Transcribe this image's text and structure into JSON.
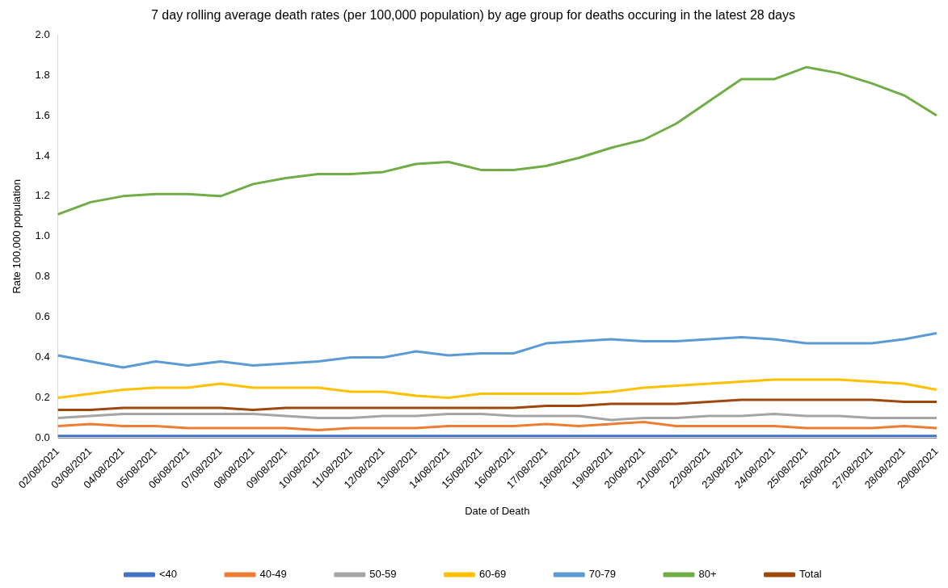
{
  "chart_data": {
    "type": "line",
    "title": "7 day rolling average death rates (per 100,000 population) by age group for deaths occuring in the latest 28 days",
    "xlabel": "Date of Death",
    "ylabel": "Rate 100,000 population",
    "categories": [
      "02/08/2021",
      "03/08/2021",
      "04/08/2021",
      "05/08/2021",
      "06/08/2021",
      "07/08/2021",
      "08/08/2021",
      "09/08/2021",
      "10/08/2021",
      "11/08/2021",
      "12/08/2021",
      "13/08/2021",
      "14/08/2021",
      "15/08/2021",
      "16/08/2021",
      "17/08/2021",
      "18/08/2021",
      "19/08/2021",
      "20/08/2021",
      "21/08/2021",
      "22/08/2021",
      "23/08/2021",
      "24/08/2021",
      "25/08/2021",
      "26/08/2021",
      "27/08/2021",
      "28/08/2021",
      "29/08/2021"
    ],
    "series": [
      {
        "name": "<40",
        "color": "#4472c4",
        "values": [
          0.01,
          0.01,
          0.01,
          0.01,
          0.01,
          0.01,
          0.01,
          0.01,
          0.01,
          0.01,
          0.01,
          0.01,
          0.01,
          0.01,
          0.01,
          0.01,
          0.01,
          0.01,
          0.01,
          0.01,
          0.01,
          0.01,
          0.01,
          0.01,
          0.01,
          0.01,
          0.01,
          0.01
        ]
      },
      {
        "name": "40-49",
        "color": "#ed7d31",
        "values": [
          0.06,
          0.07,
          0.06,
          0.06,
          0.05,
          0.05,
          0.05,
          0.05,
          0.04,
          0.05,
          0.05,
          0.05,
          0.06,
          0.06,
          0.06,
          0.07,
          0.06,
          0.07,
          0.08,
          0.06,
          0.06,
          0.06,
          0.06,
          0.05,
          0.05,
          0.05,
          0.06,
          0.05
        ]
      },
      {
        "name": "50-59",
        "color": "#a5a5a5",
        "values": [
          0.1,
          0.11,
          0.12,
          0.12,
          0.12,
          0.12,
          0.12,
          0.11,
          0.1,
          0.1,
          0.11,
          0.11,
          0.12,
          0.12,
          0.11,
          0.11,
          0.11,
          0.09,
          0.1,
          0.1,
          0.11,
          0.11,
          0.12,
          0.11,
          0.11,
          0.1,
          0.1,
          0.1
        ]
      },
      {
        "name": "60-69",
        "color": "#ffc000",
        "values": [
          0.2,
          0.22,
          0.24,
          0.25,
          0.25,
          0.27,
          0.25,
          0.25,
          0.25,
          0.23,
          0.23,
          0.21,
          0.2,
          0.22,
          0.22,
          0.22,
          0.22,
          0.23,
          0.25,
          0.26,
          0.27,
          0.28,
          0.29,
          0.29,
          0.29,
          0.28,
          0.27,
          0.24
        ]
      },
      {
        "name": "70-79",
        "color": "#5b9bd5",
        "values": [
          0.41,
          0.38,
          0.35,
          0.38,
          0.36,
          0.38,
          0.36,
          0.37,
          0.38,
          0.4,
          0.4,
          0.43,
          0.41,
          0.42,
          0.42,
          0.47,
          0.48,
          0.49,
          0.48,
          0.48,
          0.49,
          0.5,
          0.49,
          0.47,
          0.47,
          0.47,
          0.49,
          0.52
        ]
      },
      {
        "name": "80+",
        "color": "#70ad47",
        "values": [
          1.11,
          1.17,
          1.2,
          1.21,
          1.21,
          1.2,
          1.26,
          1.29,
          1.31,
          1.31,
          1.32,
          1.36,
          1.37,
          1.33,
          1.33,
          1.35,
          1.39,
          1.44,
          1.48,
          1.56,
          1.67,
          1.78,
          1.78,
          1.84,
          1.81,
          1.76,
          1.7,
          1.6
        ]
      },
      {
        "name": "Total",
        "color": "#9e480e",
        "values": [
          0.14,
          0.14,
          0.15,
          0.15,
          0.15,
          0.15,
          0.14,
          0.15,
          0.15,
          0.15,
          0.15,
          0.15,
          0.15,
          0.15,
          0.15,
          0.16,
          0.16,
          0.17,
          0.17,
          0.17,
          0.18,
          0.19,
          0.19,
          0.19,
          0.19,
          0.19,
          0.18,
          0.18
        ]
      }
    ],
    "ylim": [
      0,
      2.0
    ],
    "yticks": [
      {
        "value": 0,
        "label": "0.0"
      },
      {
        "value": 0.2,
        "label": "0.2"
      },
      {
        "value": 0.4,
        "label": "0.4"
      },
      {
        "value": 0.6,
        "label": "0.6"
      },
      {
        "value": 0.8,
        "label": "0.8"
      },
      {
        "value": 1,
        "label": "1.0"
      },
      {
        "value": 1.2,
        "label": "1.2"
      },
      {
        "value": 1.4,
        "label": "1.4"
      },
      {
        "value": 1.6,
        "label": "1.6"
      },
      {
        "value": 1.8,
        "label": "1.8"
      },
      {
        "value": 2,
        "label": "2.0"
      }
    ],
    "grid": false,
    "legend": "bottom",
    "marker": "none",
    "line_style": "solid"
  }
}
